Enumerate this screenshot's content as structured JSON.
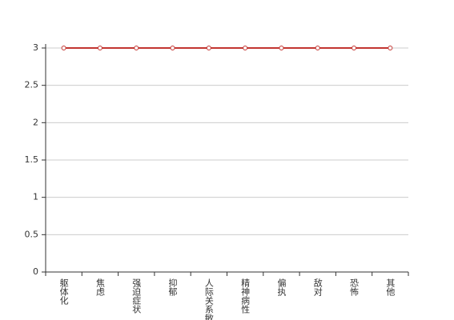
{
  "chart_data": {
    "type": "line",
    "categories": [
      "躯体化",
      "焦虑",
      "强迫症状",
      "抑郁",
      "人际关系敏感",
      "精神病性",
      "偏执",
      "敌对",
      "恐怖",
      "其他"
    ],
    "values": [
      3,
      3,
      3,
      3,
      3,
      3,
      3,
      3,
      3,
      3
    ],
    "color": "#c23531",
    "ylim": [
      0,
      3
    ],
    "yticks": [
      0,
      0.5,
      1,
      1.5,
      2,
      2.5,
      3
    ],
    "grid": true
  }
}
